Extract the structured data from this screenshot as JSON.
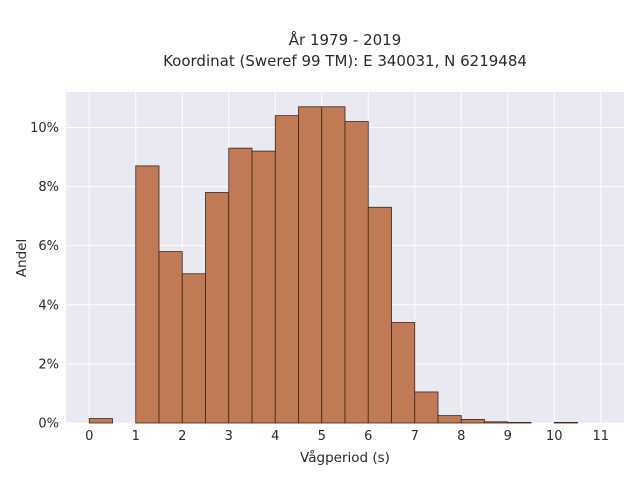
{
  "chart_data": {
    "type": "bar",
    "title": "År 1979 - 2019",
    "subtitle": "Koordinat (Sweref 99 TM): E 340031, N 6219484",
    "xlabel": "Vågperiod (s)",
    "ylabel": "Andel",
    "xlim": [
      -0.5,
      11.5
    ],
    "ylim": [
      0,
      11.2
    ],
    "x_ticks": [
      0,
      1,
      2,
      3,
      4,
      5,
      6,
      7,
      8,
      9,
      10,
      11
    ],
    "y_ticks": [
      0,
      2,
      4,
      6,
      8,
      10
    ],
    "y_tick_labels": [
      "0%",
      "2%",
      "4%",
      "6%",
      "8%",
      "10%"
    ],
    "bin_width": 0.5,
    "bins": [
      {
        "start": 0.0,
        "value": 0.15
      },
      {
        "start": 1.0,
        "value": 8.7
      },
      {
        "start": 1.5,
        "value": 5.8
      },
      {
        "start": 2.0,
        "value": 5.05
      },
      {
        "start": 2.5,
        "value": 7.8
      },
      {
        "start": 3.0,
        "value": 9.3
      },
      {
        "start": 3.5,
        "value": 9.2
      },
      {
        "start": 4.0,
        "value": 10.4
      },
      {
        "start": 4.5,
        "value": 10.7
      },
      {
        "start": 5.0,
        "value": 10.7
      },
      {
        "start": 5.5,
        "value": 10.2
      },
      {
        "start": 6.0,
        "value": 7.3
      },
      {
        "start": 6.5,
        "value": 3.4
      },
      {
        "start": 7.0,
        "value": 1.05
      },
      {
        "start": 7.5,
        "value": 0.25
      },
      {
        "start": 8.0,
        "value": 0.12
      },
      {
        "start": 8.5,
        "value": 0.04
      },
      {
        "start": 9.0,
        "value": 0.02
      },
      {
        "start": 10.0,
        "value": 0.02
      }
    ],
    "bar_color": "#c07b56",
    "bar_edge_color": "#3b2418",
    "plot_background": "#e9e9f1",
    "grid": true
  }
}
